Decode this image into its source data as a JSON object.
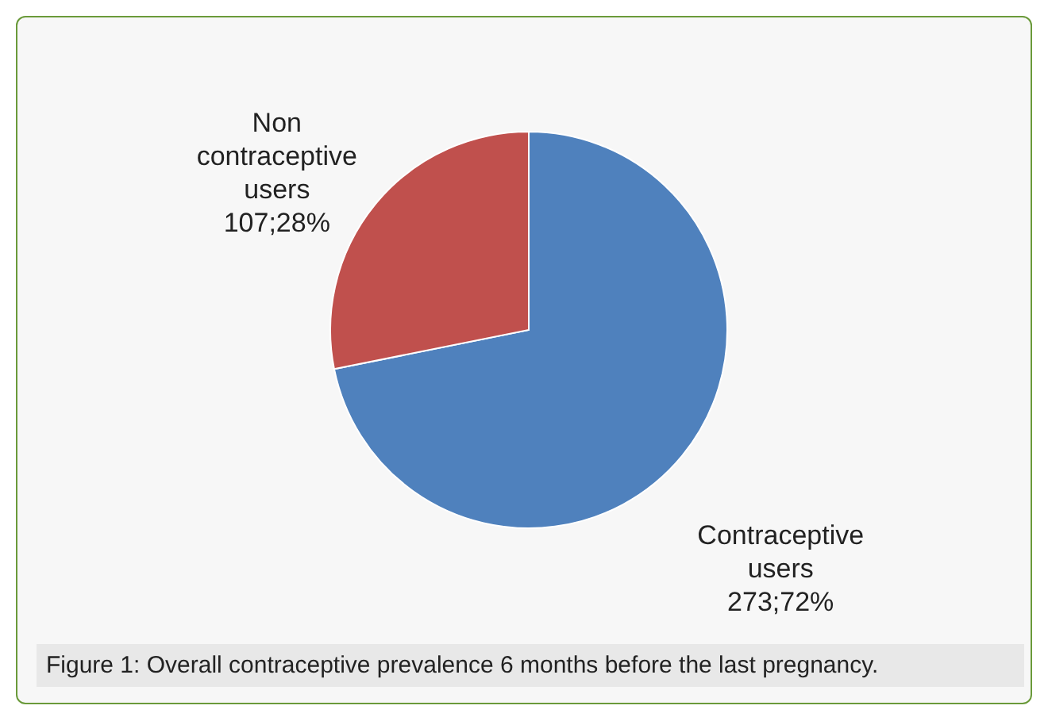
{
  "chart_data": {
    "type": "pie",
    "categories": [
      "Contraceptive users",
      "Non contraceptive users"
    ],
    "values": [
      273,
      107
    ],
    "colors": [
      "#4f81bd",
      "#c0504d"
    ],
    "value_labels": [
      "273;72%",
      "107;28%"
    ],
    "annotations": [
      "Figure 1: Overall contraceptive prevalence 6 months before the last pregnancy."
    ]
  }
}
